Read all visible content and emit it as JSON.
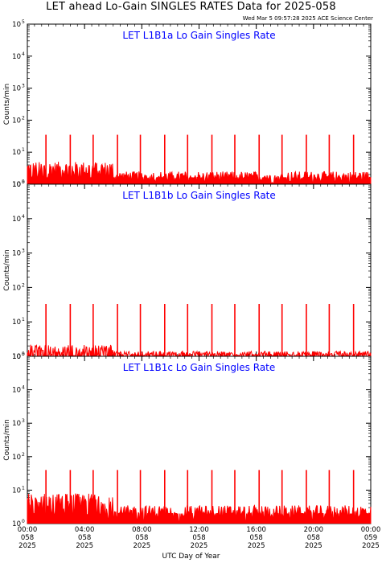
{
  "header": {
    "title": "LET ahead Lo-Gain SINGLES RATES Data for 2025-058",
    "timestamp": "Wed Mar  5 09:57:28 2025 ACE Science Center"
  },
  "x_axis_title": "UTC Day of Year",
  "colors": {
    "trace": "#ff0000",
    "panel_title": "#0000ff",
    "axes": "#000000"
  },
  "chart_data": [
    {
      "type": "line",
      "title": "LET L1B1a Lo Gain Singles Rate",
      "ylabel": "Counts/min",
      "y_scale": "log",
      "ylim": [
        1,
        100000
      ],
      "y_ticks": [
        1,
        10,
        100,
        1000,
        10000,
        100000
      ],
      "xlim": [
        0,
        24
      ],
      "x_ticks": [
        0,
        4,
        8,
        12,
        16,
        20,
        24
      ],
      "x_tick_labels": [
        [
          "00:00",
          "058",
          "2025"
        ],
        [
          "04:00",
          "058",
          "2025"
        ],
        [
          "08:00",
          "058",
          "2025"
        ],
        [
          "12:00",
          "058",
          "2025"
        ],
        [
          "16:00",
          "058",
          "2025"
        ],
        [
          "20:00",
          "058",
          "2025"
        ],
        [
          "00:00",
          "059",
          "2025"
        ]
      ],
      "spikes_hours": [
        1.3,
        3.0,
        4.6,
        6.3,
        7.9,
        9.6,
        11.2,
        12.9,
        14.5,
        16.2,
        17.8,
        19.5,
        21.1,
        22.8
      ],
      "spike_level": 35,
      "baseline": {
        "early_max": 5,
        "late_max": 2.5,
        "typical": 1.6
      }
    },
    {
      "type": "line",
      "title": "LET L1B1b Lo Gain Singles Rate",
      "ylabel": "Counts/min",
      "y_scale": "log",
      "ylim": [
        1,
        100000
      ],
      "y_ticks": [
        1,
        10,
        100,
        1000,
        10000,
        100000
      ],
      "xlim": [
        0,
        24
      ],
      "x_ticks": [
        0,
        4,
        8,
        12,
        16,
        20,
        24
      ],
      "x_tick_labels": [
        [
          "00:00",
          "058",
          "2025"
        ],
        [
          "04:00",
          "058",
          "2025"
        ],
        [
          "08:00",
          "058",
          "2025"
        ],
        [
          "12:00",
          "058",
          "2025"
        ],
        [
          "16:00",
          "058",
          "2025"
        ],
        [
          "20:00",
          "058",
          "2025"
        ],
        [
          "00:00",
          "059",
          "2025"
        ]
      ],
      "spikes_hours": [
        1.3,
        3.0,
        4.6,
        6.3,
        7.9,
        9.6,
        11.2,
        12.9,
        14.5,
        16.2,
        17.8,
        19.5,
        21.1,
        22.8
      ],
      "spike_level": 33,
      "baseline": {
        "early_max": 2.2,
        "late_max": 1.4,
        "typical": 1.05
      }
    },
    {
      "type": "line",
      "title": "LET L1B1c Lo Gain Singles Rate",
      "ylabel": "Counts/min",
      "y_scale": "log",
      "ylim": [
        1,
        100000
      ],
      "y_ticks": [
        1,
        10,
        100,
        1000,
        10000,
        100000
      ],
      "xlim": [
        0,
        24
      ],
      "x_ticks": [
        0,
        4,
        8,
        12,
        16,
        20,
        24
      ],
      "x_tick_labels": [
        [
          "00:00",
          "058",
          "2025"
        ],
        [
          "04:00",
          "058",
          "2025"
        ],
        [
          "08:00",
          "058",
          "2025"
        ],
        [
          "12:00",
          "058",
          "2025"
        ],
        [
          "16:00",
          "058",
          "2025"
        ],
        [
          "20:00",
          "058",
          "2025"
        ],
        [
          "00:00",
          "059",
          "2025"
        ]
      ],
      "spikes_hours": [
        1.3,
        3.0,
        4.6,
        6.3,
        7.9,
        9.6,
        11.2,
        12.9,
        14.5,
        16.2,
        17.8,
        19.5,
        21.1,
        22.8
      ],
      "spike_level": 40,
      "baseline": {
        "early_max": 8,
        "late_max": 3.5,
        "typical": 2
      }
    }
  ]
}
